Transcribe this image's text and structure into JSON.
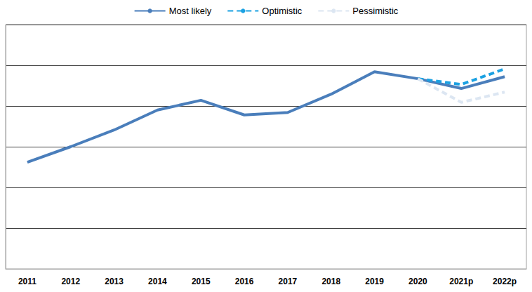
{
  "chart_data": {
    "type": "line",
    "categories": [
      "2011",
      "2012",
      "2013",
      "2014",
      "2015",
      "2016",
      "2017",
      "2018",
      "2019",
      "2020",
      "2021p",
      "2022p"
    ],
    "series": [
      {
        "name": "Most likely",
        "color": "#4a7ebb",
        "line_style": "solid",
        "marker": "none",
        "values": [
          2.62,
          3.0,
          3.41,
          3.9,
          4.14,
          3.78,
          3.84,
          4.29,
          4.84,
          4.67,
          4.43,
          4.72
        ]
      },
      {
        "name": "Optimistic",
        "color": "#1ba1e2",
        "line_style": "dashed",
        "marker": "none",
        "values": [
          null,
          null,
          null,
          null,
          null,
          null,
          null,
          null,
          null,
          4.67,
          4.53,
          4.91
        ]
      },
      {
        "name": "Pessimistic",
        "color": "#dce6f2",
        "line_style": "dashed",
        "marker": "none",
        "values": [
          null,
          null,
          null,
          null,
          null,
          null,
          null,
          null,
          null,
          4.67,
          4.09,
          4.34
        ]
      }
    ],
    "ylim": [
      0,
      6
    ],
    "yticks": [
      0,
      1,
      2,
      3,
      4,
      5,
      6
    ],
    "grid": true,
    "legend": "top",
    "tick_labels": "x"
  }
}
